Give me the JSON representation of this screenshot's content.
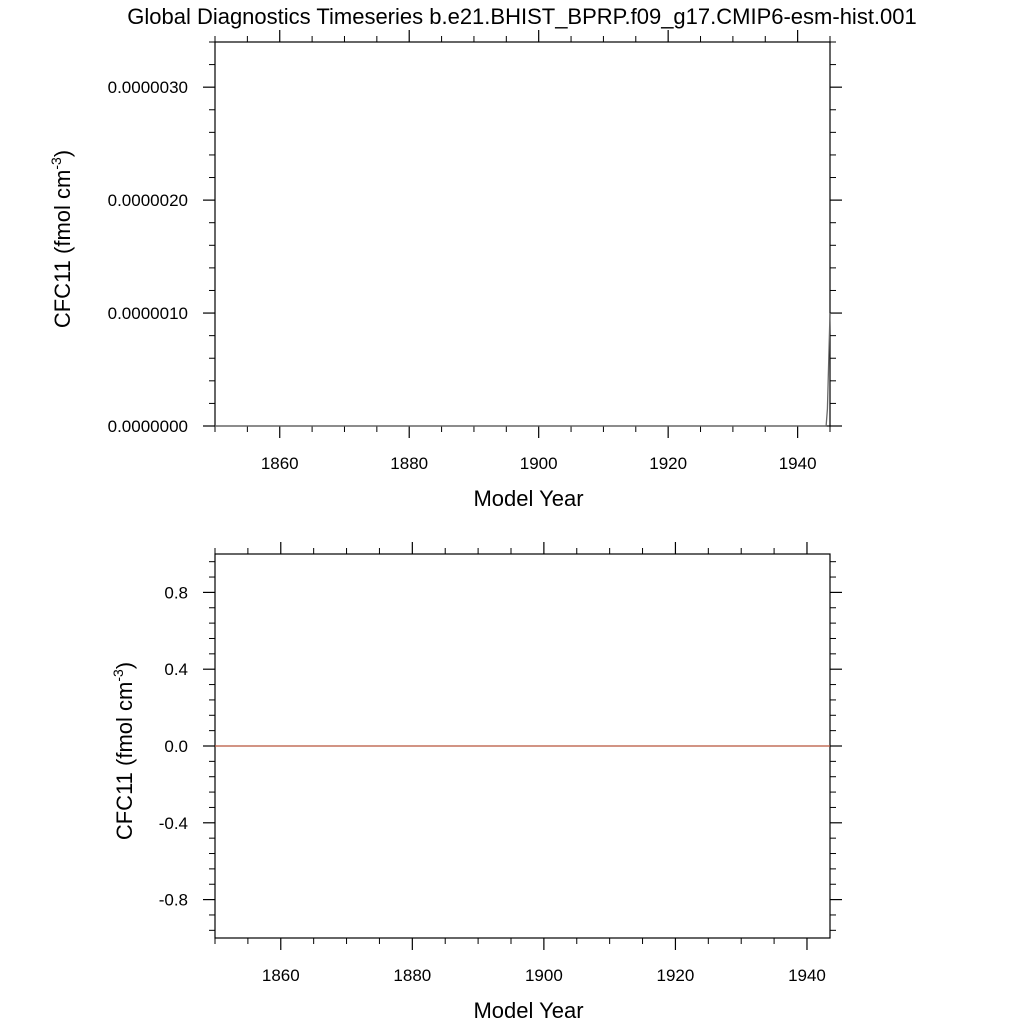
{
  "title": "Global Diagnostics Timeseries b.e21.BHIST_BPRP.f09_g17.CMIP6-esm-hist.001",
  "chart_data": [
    {
      "type": "line",
      "title": "",
      "xlabel": "Model Year",
      "ylabel": {
        "text": "CFC11 (fmol cm",
        "sup": "-3",
        "close": ")"
      },
      "xlim": [
        1850,
        1945
      ],
      "ylim": [
        0,
        3.4e-06
      ],
      "x_ticks": [
        1860,
        1880,
        1900,
        1920,
        1940
      ],
      "x_tick_labels": [
        "1860",
        "1880",
        "1900",
        "1920",
        "1940"
      ],
      "y_ticks": [
        0,
        1e-06,
        2e-06,
        3e-06
      ],
      "y_tick_labels": [
        "0.0000000",
        "0.0000010",
        "0.0000020",
        "0.0000030"
      ],
      "grid": false,
      "line_color": "#666666",
      "series": [
        {
          "x": [
            1850,
            1944.4,
            1944.6,
            1945
          ],
          "y": [
            0,
            0,
            1.5e-07,
            1e-06
          ]
        }
      ]
    },
    {
      "type": "line",
      "title": "",
      "xlabel": "Model Year",
      "ylabel": {
        "text": "CFC11 (fmol cm",
        "sup": "-3",
        "close": ")"
      },
      "xlim": [
        1850,
        1943.5
      ],
      "ylim": [
        -1,
        1
      ],
      "x_ticks": [
        1860,
        1880,
        1900,
        1920,
        1940
      ],
      "x_tick_labels": [
        "1860",
        "1880",
        "1900",
        "1920",
        "1940"
      ],
      "y_ticks": [
        -0.8,
        -0.4,
        0.0,
        0.4,
        0.8
      ],
      "y_tick_labels": [
        "-0.8",
        "-0.4",
        "0.0",
        "0.4",
        "0.8"
      ],
      "grid": false,
      "line_color": "#b8543a",
      "series": [
        {
          "x": [
            1850,
            1943.5
          ],
          "y": [
            0,
            0
          ]
        }
      ]
    }
  ]
}
